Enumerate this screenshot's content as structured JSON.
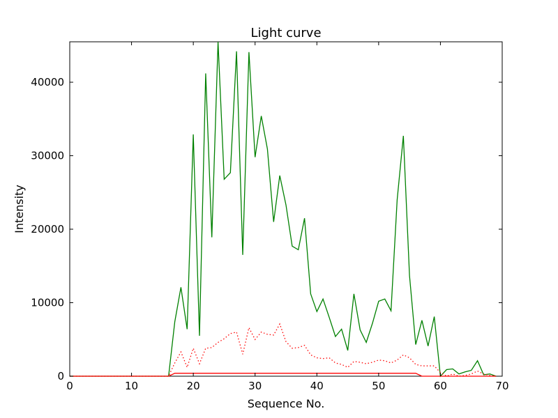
{
  "chart_data": {
    "type": "line",
    "title": "Light curve",
    "xlabel": "Sequence No.",
    "ylabel": "Intensity",
    "xlim": [
      0,
      70
    ],
    "ylim": [
      0,
      45500
    ],
    "xticks": [
      0,
      10,
      20,
      30,
      40,
      50,
      60,
      70
    ],
    "xtick_labels": [
      "0",
      "10",
      "20",
      "30",
      "40",
      "50",
      "60",
      "70"
    ],
    "yticks": [
      0,
      10000,
      20000,
      30000,
      40000
    ],
    "ytick_labels": [
      "0",
      "10000",
      "20000",
      "30000",
      "40000"
    ],
    "grid": false,
    "legend": "none",
    "x": [
      0,
      1,
      2,
      3,
      4,
      5,
      6,
      7,
      8,
      9,
      10,
      11,
      12,
      13,
      14,
      15,
      16,
      17,
      18,
      19,
      20,
      21,
      22,
      23,
      24,
      25,
      26,
      27,
      28,
      29,
      30,
      31,
      32,
      33,
      34,
      35,
      36,
      37,
      38,
      39,
      40,
      41,
      42,
      43,
      44,
      45,
      46,
      47,
      48,
      49,
      50,
      51,
      52,
      53,
      54,
      55,
      56,
      57,
      58,
      59,
      60,
      61,
      62,
      63,
      64,
      65,
      66,
      67,
      68,
      69
    ],
    "series": [
      {
        "color": "#008000",
        "style": "solid",
        "values": [
          0,
          0,
          0,
          0,
          0,
          0,
          0,
          0,
          0,
          0,
          0,
          0,
          0,
          0,
          0,
          0,
          0,
          7400,
          12100,
          6400,
          32900,
          5500,
          41200,
          18900,
          45500,
          26800,
          27700,
          44200,
          16500,
          44100,
          29800,
          35400,
          30900,
          21000,
          27300,
          23300,
          17700,
          17200,
          21500,
          11200,
          8800,
          10500,
          8000,
          5400,
          6400,
          3500,
          11200,
          6300,
          4600,
          7200,
          10200,
          10500,
          8900,
          24000,
          32700,
          13700,
          4300,
          7600,
          4100,
          8100,
          0,
          900,
          1000,
          300,
          600,
          800,
          2100,
          200,
          300,
          0
        ]
      },
      {
        "color": "#ff0000",
        "style": "dotted",
        "values": [
          0,
          0,
          0,
          0,
          0,
          0,
          0,
          0,
          0,
          0,
          0,
          0,
          0,
          0,
          0,
          0,
          0,
          1800,
          3300,
          1200,
          3800,
          1700,
          3800,
          3900,
          4600,
          5100,
          5800,
          6000,
          3000,
          6600,
          5000,
          6000,
          5700,
          5600,
          7100,
          4700,
          3800,
          3900,
          4200,
          2900,
          2500,
          2400,
          2500,
          1800,
          1600,
          1200,
          2000,
          1900,
          1700,
          1900,
          2200,
          2100,
          1800,
          2200,
          2900,
          2500,
          1600,
          1400,
          1400,
          1400,
          500,
          0,
          300,
          0,
          100,
          300,
          700,
          300,
          100,
          0
        ]
      },
      {
        "color": "#ff0000",
        "style": "solid",
        "values": [
          0,
          0,
          0,
          0,
          0,
          0,
          0,
          0,
          0,
          0,
          0,
          0,
          0,
          0,
          0,
          0,
          0,
          400,
          400,
          400,
          400,
          400,
          400,
          400,
          400,
          400,
          400,
          400,
          400,
          400,
          400,
          400,
          400,
          400,
          400,
          400,
          400,
          400,
          400,
          400,
          400,
          400,
          400,
          400,
          400,
          400,
          400,
          400,
          400,
          400,
          400,
          400,
          400,
          400,
          400,
          400,
          400,
          0,
          0,
          0,
          0,
          0,
          0,
          0,
          0,
          0,
          0,
          0,
          0,
          0
        ]
      }
    ]
  }
}
